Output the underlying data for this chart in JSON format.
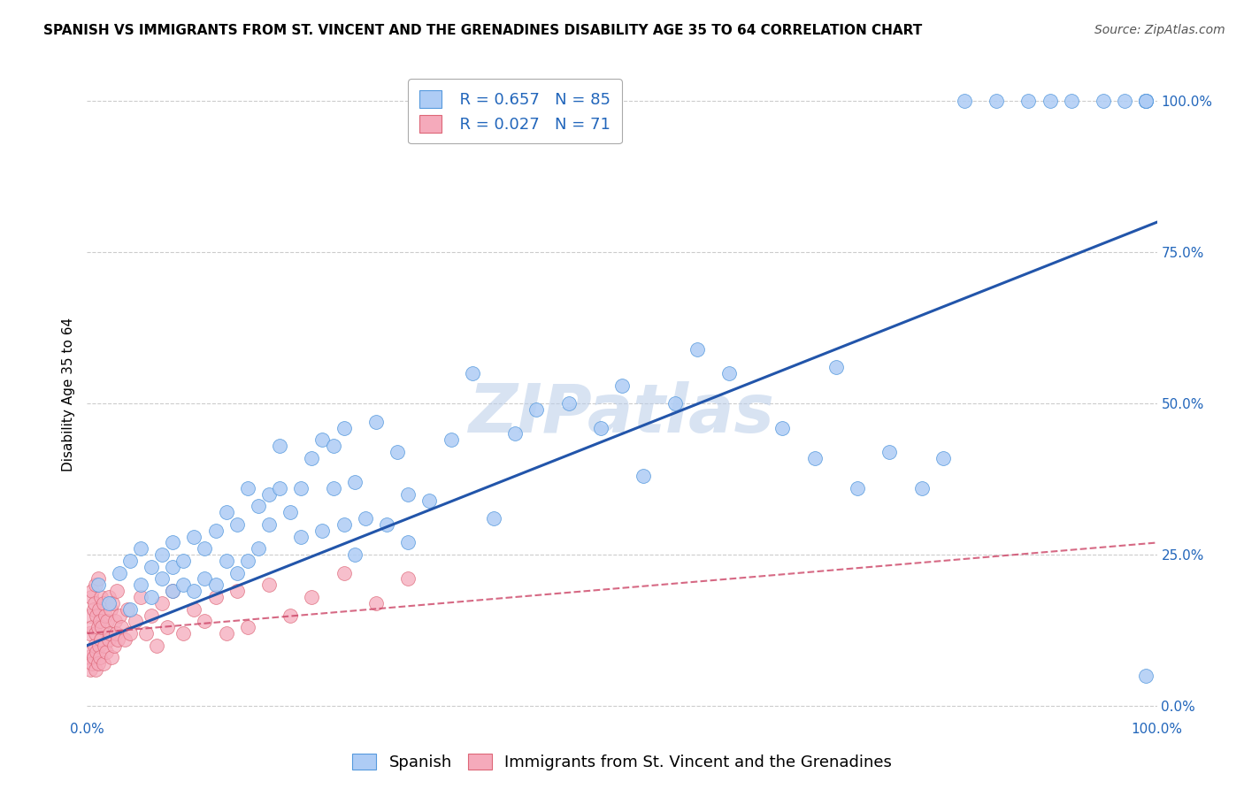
{
  "title": "SPANISH VS IMMIGRANTS FROM ST. VINCENT AND THE GRENADINES DISABILITY AGE 35 TO 64 CORRELATION CHART",
  "source": "Source: ZipAtlas.com",
  "ylabel": "Disability Age 35 to 64",
  "ytick_values": [
    0,
    25,
    50,
    75,
    100
  ],
  "xlim": [
    0,
    100
  ],
  "ylim": [
    -2,
    105
  ],
  "watermark": "ZIPatlas",
  "legend_blue_label": "Spanish",
  "legend_pink_label": "Immigrants from St. Vincent and the Grenadines",
  "blue_R": "R = 0.657",
  "blue_N": "N = 85",
  "pink_R": "R = 0.027",
  "pink_N": "N = 71",
  "blue_color": "#aeccf5",
  "blue_edge_color": "#5599dd",
  "blue_line_color": "#2255aa",
  "pink_color": "#f5aabb",
  "pink_edge_color": "#dd6677",
  "pink_line_color": "#cc4466",
  "blue_scatter_x": [
    1,
    2,
    3,
    4,
    4,
    5,
    5,
    6,
    6,
    7,
    7,
    8,
    8,
    8,
    9,
    9,
    10,
    10,
    11,
    11,
    12,
    12,
    13,
    13,
    14,
    14,
    15,
    15,
    16,
    16,
    17,
    17,
    18,
    18,
    19,
    20,
    20,
    21,
    22,
    22,
    23,
    23,
    24,
    24,
    25,
    25,
    26,
    27,
    28,
    29,
    30,
    30,
    32,
    34,
    36,
    38,
    40,
    42,
    45,
    48,
    50,
    52,
    55,
    57,
    60,
    65,
    68,
    70,
    72,
    75,
    78,
    80,
    82,
    85,
    88,
    90,
    92,
    95,
    97,
    99,
    99,
    99,
    99,
    99,
    99
  ],
  "blue_scatter_y": [
    20,
    17,
    22,
    16,
    24,
    20,
    26,
    18,
    23,
    21,
    25,
    19,
    23,
    27,
    20,
    24,
    19,
    28,
    21,
    26,
    20,
    29,
    24,
    32,
    22,
    30,
    24,
    36,
    26,
    33,
    30,
    35,
    36,
    43,
    32,
    28,
    36,
    41,
    29,
    44,
    36,
    43,
    30,
    46,
    25,
    37,
    31,
    47,
    30,
    42,
    35,
    27,
    34,
    44,
    55,
    31,
    45,
    49,
    50,
    46,
    53,
    38,
    50,
    59,
    55,
    46,
    41,
    56,
    36,
    42,
    36,
    41,
    100,
    100,
    100,
    100,
    100,
    100,
    100,
    100,
    100,
    100,
    100,
    100,
    5
  ],
  "pink_scatter_x": [
    0.1,
    0.2,
    0.3,
    0.3,
    0.4,
    0.4,
    0.5,
    0.5,
    0.5,
    0.6,
    0.6,
    0.7,
    0.7,
    0.8,
    0.8,
    0.8,
    0.9,
    0.9,
    1.0,
    1.0,
    1.0,
    1.1,
    1.1,
    1.2,
    1.2,
    1.3,
    1.3,
    1.4,
    1.5,
    1.5,
    1.6,
    1.7,
    1.8,
    1.9,
    2.0,
    2.0,
    2.1,
    2.2,
    2.3,
    2.4,
    2.5,
    2.6,
    2.7,
    2.8,
    2.9,
    3.0,
    3.2,
    3.5,
    3.8,
    4.0,
    4.5,
    5.0,
    5.5,
    6.0,
    6.5,
    7.0,
    7.5,
    8.0,
    9.0,
    10.0,
    11.0,
    12.0,
    13.0,
    14.0,
    15.0,
    17.0,
    19.0,
    21.0,
    24.0,
    27.0,
    30.0
  ],
  "pink_scatter_y": [
    8,
    12,
    6,
    15,
    9,
    18,
    7,
    13,
    19,
    8,
    16,
    10,
    17,
    6,
    12,
    20,
    9,
    15,
    7,
    13,
    21,
    10,
    16,
    8,
    14,
    11,
    18,
    13,
    7,
    17,
    10,
    15,
    9,
    14,
    11,
    18,
    12,
    16,
    8,
    17,
    10,
    14,
    12,
    19,
    11,
    15,
    13,
    11,
    16,
    12,
    14,
    18,
    12,
    15,
    10,
    17,
    13,
    19,
    12,
    16,
    14,
    18,
    12,
    19,
    13,
    20,
    15,
    18,
    22,
    17,
    21
  ],
  "title_fontsize": 11,
  "source_fontsize": 10,
  "label_fontsize": 11,
  "tick_fontsize": 11,
  "legend_fontsize": 13,
  "watermark_fontsize": 55,
  "background_color": "#ffffff",
  "grid_color": "#cccccc",
  "blue_line_y0": 10,
  "blue_line_y1": 80,
  "pink_line_y0": 12,
  "pink_line_y1": 27
}
